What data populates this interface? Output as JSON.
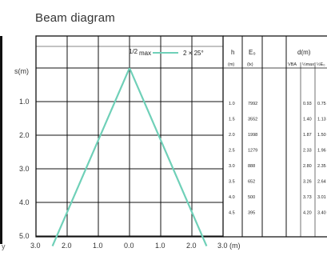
{
  "title": "Beam diagram",
  "y_axis": {
    "unit_label": "s(m)",
    "ticks": [
      "1.0",
      "2.0",
      "3.0",
      "4.0",
      "5.0"
    ]
  },
  "x_axis": {
    "ticks": [
      "3.0",
      "2.0",
      "1.0",
      "0.0",
      "1.0",
      "2.0",
      "3.0 (m)"
    ]
  },
  "legend": {
    "prefix": "1/2",
    "sub": "max",
    "text": "2 × 25°"
  },
  "table": {
    "headers": {
      "h": "h",
      "eb": "E₀",
      "dm": "d(m)",
      "h_unit": "(m)",
      "eb_unit": "(lx)",
      "vba": "VBA",
      "d1": "½max",
      "d2": "½E₀"
    },
    "rows": [
      {
        "h": "1.0",
        "e": "7992",
        "d1": "0.93",
        "d2": "0.75"
      },
      {
        "h": "1.5",
        "e": "3552",
        "d1": "1.40",
        "d2": "1.13"
      },
      {
        "h": "2.0",
        "e": "1998",
        "d1": "1.87",
        "d2": "1.50"
      },
      {
        "h": "2.5",
        "e": "1279",
        "d1": "2.33",
        "d2": "1.96"
      },
      {
        "h": "3.0",
        "e": "888",
        "d1": "2.80",
        "d2": "2.35"
      },
      {
        "h": "3.5",
        "e": "652",
        "d1": "3.26",
        "d2": "2.64"
      },
      {
        "h": "4.0",
        "e": "500",
        "d1": "3.73",
        "d2": "3.01"
      },
      {
        "h": "4.5",
        "e": "395",
        "d1": "4.20",
        "d2": "3.40"
      }
    ]
  },
  "colors": {
    "beam": "#6fd0b8",
    "grid": "#111111",
    "text": "#222222"
  },
  "left_mark": "y"
}
